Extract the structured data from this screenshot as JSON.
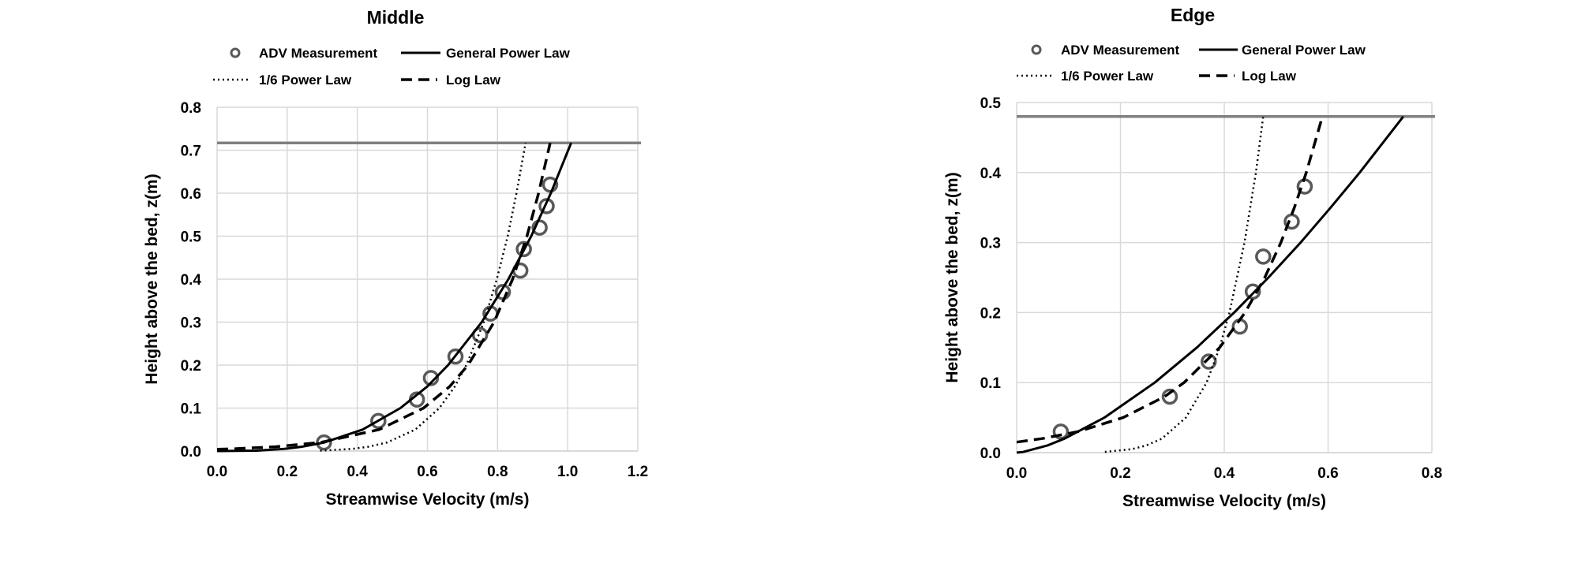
{
  "chart_data": [
    {
      "type": "line",
      "title": "Middle",
      "xlabel": "Streamwise Velocity (m/s)",
      "ylabel": "Height above the bed, z(m)",
      "xlim": [
        0,
        1.2
      ],
      "ylim": [
        0,
        0.8
      ],
      "xticks": [
        "0.0",
        "0.2",
        "0.4",
        "0.6",
        "0.8",
        "1.0",
        "1.2"
      ],
      "yticks": [
        "0.0",
        "0.1",
        "0.2",
        "0.3",
        "0.4",
        "0.5",
        "0.6",
        "0.7",
        "0.8"
      ],
      "grid": true,
      "legend_position": "top",
      "water_surface": 0.717,
      "legend": [
        "ADV Measurement",
        "General Power Law",
        "1/6 Power Law",
        "Log Law"
      ],
      "series": [
        {
          "name": "ADV Measurement",
          "style": "markers",
          "x": [
            0.305,
            0.46,
            0.57,
            0.61,
            0.68,
            0.75,
            0.78,
            0.815,
            0.865,
            0.875,
            0.92,
            0.94,
            0.95
          ],
          "y": [
            0.02,
            0.07,
            0.12,
            0.17,
            0.22,
            0.27,
            0.32,
            0.37,
            0.42,
            0.47,
            0.52,
            0.57,
            0.62
          ]
        },
        {
          "name": "General Power Law",
          "style": "solid",
          "x": [
            0,
            0.112,
            0.192,
            0.242,
            0.306,
            0.415,
            0.523,
            0.599,
            0.659,
            0.755,
            0.831,
            0.896,
            0.952,
            1.01
          ],
          "y": [
            0,
            0.001,
            0.005,
            0.01,
            0.02,
            0.05,
            0.1,
            0.15,
            0.2,
            0.3,
            0.4,
            0.5,
            0.6,
            0.717
          ]
        },
        {
          "name": "1/6 Power Law",
          "style": "dotted",
          "x": [
            0.294,
            0.385,
            0.432,
            0.485,
            0.565,
            0.634,
            0.678,
            0.711,
            0.761,
            0.798,
            0.829,
            0.854,
            0.88
          ],
          "y": [
            0.001,
            0.005,
            0.01,
            0.02,
            0.05,
            0.1,
            0.15,
            0.2,
            0.3,
            0.4,
            0.5,
            0.6,
            0.717
          ]
        },
        {
          "name": "Log Law",
          "style": "dashed",
          "x": [
            0,
            0.041,
            0.168,
            0.295,
            0.462,
            0.589,
            0.663,
            0.716,
            0.79,
            0.843,
            0.884,
            0.917,
            0.95
          ],
          "y": [
            0.004,
            0.005,
            0.01,
            0.02,
            0.05,
            0.1,
            0.15,
            0.2,
            0.3,
            0.4,
            0.5,
            0.6,
            0.717
          ]
        }
      ]
    },
    {
      "type": "line",
      "title": "Edge",
      "xlabel": "Streamwise Velocity (m/s)",
      "ylabel": "Height above the bed, z(m)",
      "xlim": [
        0,
        0.8
      ],
      "ylim": [
        0,
        0.5
      ],
      "xticks": [
        "0.0",
        "0.2",
        "0.4",
        "0.6",
        "0.8"
      ],
      "yticks": [
        "0.0",
        "0.1",
        "0.2",
        "0.3",
        "0.4",
        "0.5"
      ],
      "grid": true,
      "legend_position": "top",
      "water_surface": 0.48,
      "legend": [
        "ADV Measurement",
        "General Power Law",
        "1/6 Power Law",
        "Log Law"
      ],
      "series": [
        {
          "name": "ADV Measurement",
          "style": "markers",
          "x": [
            0.085,
            0.295,
            0.37,
            0.43,
            0.455,
            0.475,
            0.53,
            0.555
          ],
          "y": [
            0.03,
            0.08,
            0.13,
            0.18,
            0.23,
            0.28,
            0.33,
            0.38
          ]
        },
        {
          "name": "General Power Law",
          "style": "solid",
          "x": [
            0,
            0.0129,
            0.0586,
            0.0923,
            0.169,
            0.266,
            0.347,
            0.419,
            0.485,
            0.547,
            0.605,
            0.661,
            0.745
          ],
          "y": [
            0,
            0.001,
            0.01,
            0.02,
            0.05,
            0.1,
            0.15,
            0.2,
            0.25,
            0.3,
            0.35,
            0.4,
            0.48
          ]
        },
        {
          "name": "1/6 Power Law",
          "style": "dotted",
          "x": [
            0.17,
            0.222,
            0.249,
            0.28,
            0.326,
            0.366,
            0.391,
            0.41,
            0.439,
            0.461,
            0.475
          ],
          "y": [
            0.001,
            0.005,
            0.01,
            0.02,
            0.05,
            0.1,
            0.15,
            0.2,
            0.3,
            0.4,
            0.48
          ]
        },
        {
          "name": "Log Law",
          "style": "dashed",
          "x": [
            0,
            0.049,
            0.118,
            0.205,
            0.285,
            0.3225,
            0.391,
            0.44,
            0.478,
            0.509,
            0.535,
            0.558,
            0.589
          ],
          "y": [
            0.015,
            0.02,
            0.03,
            0.05,
            0.08,
            0.1,
            0.15,
            0.2,
            0.25,
            0.3,
            0.35,
            0.4,
            0.48
          ]
        }
      ]
    }
  ],
  "colors": {
    "marker": "#595959",
    "line": "#000000",
    "surface": "#808080",
    "grid": "#d9d9d9"
  }
}
